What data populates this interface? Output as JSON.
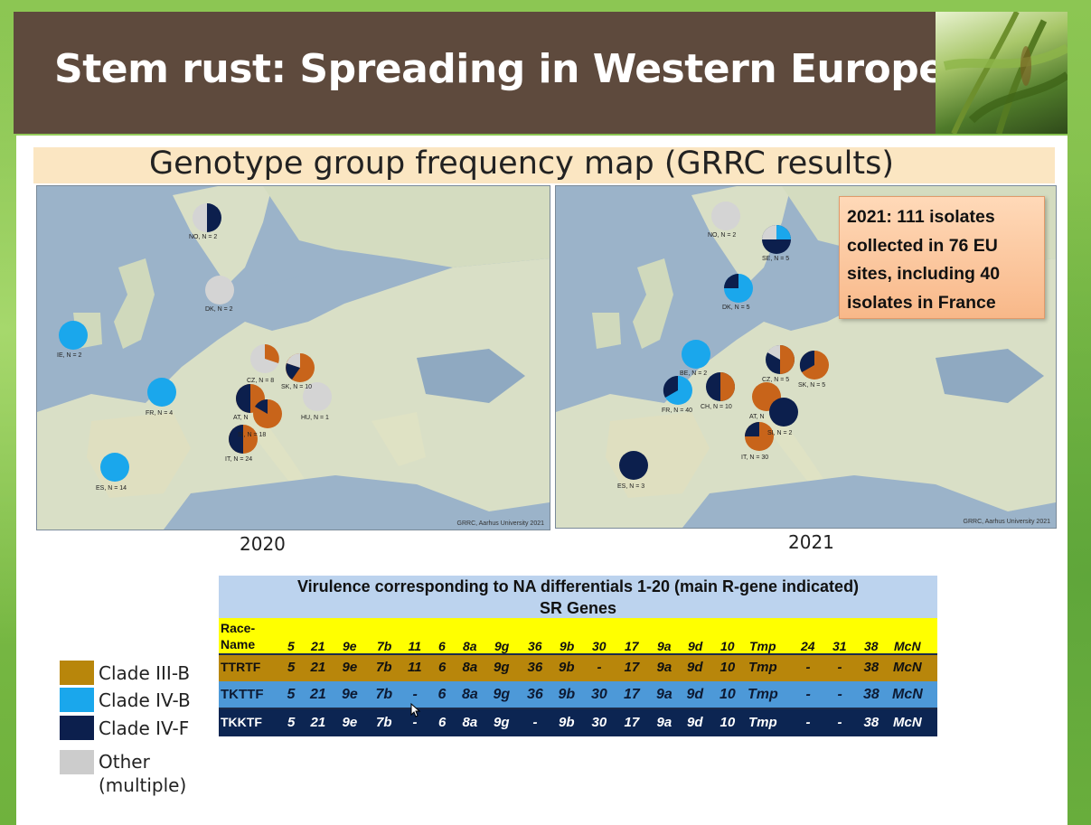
{
  "slide": {
    "title": "Stem rust: Spreading in Western Europe",
    "subtitle": "Genotype group frequency map (GRRC results)"
  },
  "maps": [
    {
      "year": "2020",
      "credit": "GRRC, Aarhus University 2021",
      "labels": [
        "NO, N = 2",
        "DK, N = 2",
        "IE, N = 2",
        "CZ, N = 8",
        "SK, N = 10",
        "FR, N = 4",
        "AT, N",
        "SI, N = 18",
        "HU, N = 1",
        "IT, N = 24",
        "ES, N = 14"
      ]
    },
    {
      "year": "2021",
      "credit": "GRRC, Aarhus University 2021",
      "labels": [
        "NO, N = 2",
        "SE, N = 5",
        "DK, N = 5",
        "BE, N = 2",
        "CZ, N = 5",
        "SK, N = 5",
        "FR, N = 40",
        "CH, N = 10",
        "AT, N",
        "SI, N = 2",
        "IT, N = 30",
        "ES, N = 3"
      ]
    }
  ],
  "callout": {
    "lines": [
      "2021: 111 isolates",
      "collected  in 76 EU",
      "sites, including 40",
      "isolates in France"
    ]
  },
  "colors": {
    "clade_iii_b": "#b8860b",
    "clade_iv_b": "#1aa7ec",
    "clade_iv_f": "#0c1f4d",
    "other": "#d4d4d4",
    "pie_orange": "#c8641a"
  },
  "legend": [
    {
      "label": "Clade III-B",
      "color": "#b8860b"
    },
    {
      "label": "Clade IV-B",
      "color": "#1aa7ec"
    },
    {
      "label": "Clade IV-F",
      "color": "#0c1f4d"
    },
    {
      "label": "Other",
      "label2": "(multiple)",
      "color": "#cccccc"
    }
  ],
  "table": {
    "header1": "Virulence corresponding to NA differentials 1-20 (main R-gene indicated)",
    "header2": "SR Genes",
    "race_name_label": [
      "Race-",
      "Name"
    ],
    "genes": [
      "5",
      "21",
      "9e",
      "7b",
      "11",
      "6",
      "8a",
      "9g",
      "36",
      "9b",
      "30",
      "17",
      "9a",
      "9d",
      "10",
      "Tmp",
      "24",
      "31",
      "38",
      "McN"
    ],
    "rows": [
      {
        "race": "TTRTF",
        "values": [
          "5",
          "21",
          "9e",
          "7b",
          "11",
          "6",
          "8a",
          "9g",
          "36",
          "9b",
          "-",
          "17",
          "9a",
          "9d",
          "10",
          "Tmp",
          "-",
          "-",
          "38",
          "McN"
        ]
      },
      {
        "race": "TKTTF",
        "values": [
          "5",
          "21",
          "9e",
          "7b",
          "-",
          "6",
          "8a",
          "9g",
          "36",
          "9b",
          "30",
          "17",
          "9a",
          "9d",
          "10",
          "Tmp",
          "-",
          "-",
          "38",
          "McN"
        ]
      },
      {
        "race": "TKKTF",
        "values": [
          "5",
          "21",
          "9e",
          "7b",
          "-",
          "6",
          "8a",
          "9g",
          "-",
          "9b",
          "30",
          "17",
          "9a",
          "9d",
          "10",
          "Tmp",
          "-",
          "-",
          "38",
          "McN"
        ]
      }
    ]
  }
}
